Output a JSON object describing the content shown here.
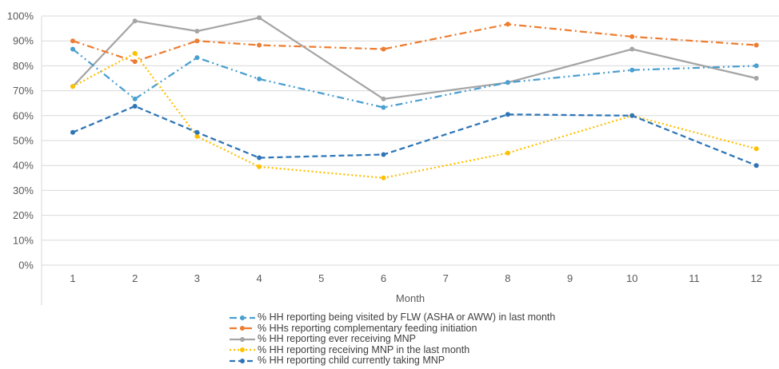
{
  "chart_data": {
    "type": "line",
    "title": "",
    "xlabel": "Month",
    "ylabel": "",
    "x_ticks": [
      "1",
      "2",
      "3",
      "4",
      "5",
      "6",
      "7",
      "8",
      "9",
      "10",
      "11",
      "12"
    ],
    "y_ticks": [
      "0%",
      "10%",
      "20%",
      "30%",
      "40%",
      "50%",
      "60%",
      "70%",
      "80%",
      "90%",
      "100%"
    ],
    "ylim": [
      0,
      100
    ],
    "grid": "horizontal",
    "legend_position": "bottom",
    "series": [
      {
        "name": "% HH reporting being  visited by FLW (ASHA or AWW) in last month",
        "color": "#4A9FD0",
        "dash": "dash-dot-dot",
        "x": [
          1,
          2,
          3,
          4,
          6,
          8,
          10,
          12
        ],
        "values": [
          86.7,
          66.7,
          83.3,
          74.7,
          63.3,
          73.3,
          78.3,
          80
        ]
      },
      {
        "name": "% HHs reporting complementary feeding initiation",
        "color": "#ED7D31",
        "dash": "dash-dot",
        "x": [
          1,
          2,
          3,
          4,
          6,
          8,
          10,
          12
        ],
        "values": [
          90,
          81.7,
          90,
          88.3,
          86.7,
          96.7,
          91.7,
          88.3
        ]
      },
      {
        "name": "% HH reporting ever receiving MNP",
        "color": "#A5A5A5",
        "dash": "solid",
        "x": [
          1,
          2,
          3,
          4,
          6,
          8,
          10,
          12
        ],
        "values": [
          71.7,
          98,
          93.9,
          99.3,
          66.7,
          73.3,
          86.7,
          75
        ]
      },
      {
        "name": "% HH reporting receiving MNP in the last month",
        "color": "#FFC000",
        "dash": "dot",
        "x": [
          1,
          2,
          3,
          4,
          6,
          8,
          10,
          12
        ],
        "values": [
          71.7,
          85,
          51.7,
          39.5,
          35,
          45,
          60,
          46.7
        ]
      },
      {
        "name": "% HH reporting child currently taking MNP",
        "color": "#2E75B6",
        "dash": "dash",
        "x": [
          1,
          2,
          3,
          4,
          6,
          8,
          10,
          12
        ],
        "values": [
          53.3,
          63.8,
          53.3,
          43.1,
          44.4,
          60.5,
          60,
          40
        ]
      }
    ]
  }
}
